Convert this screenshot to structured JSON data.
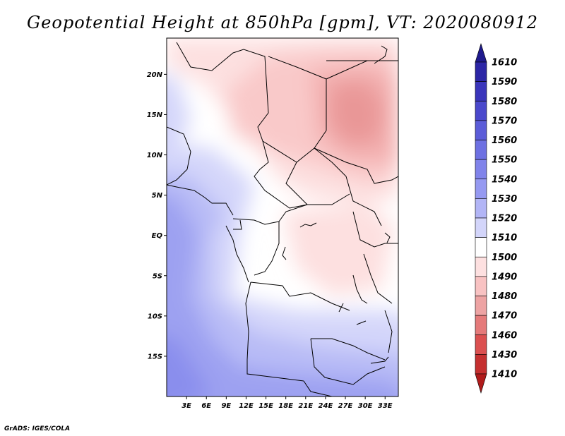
{
  "title": "Geopotential Height at 850hPa [gpm], VT: 2020080912",
  "footer": "GrADS: IGES/COLA",
  "map": {
    "lon_range": [
      0,
      35
    ],
    "lat_range": [
      -20,
      24.5
    ],
    "lat_labels": [
      {
        "value": 20,
        "label": "20N"
      },
      {
        "value": 15,
        "label": "15N"
      },
      {
        "value": 10,
        "label": "10N"
      },
      {
        "value": 5,
        "label": "5N"
      },
      {
        "value": 0,
        "label": "EQ"
      },
      {
        "value": -5,
        "label": "5S"
      },
      {
        "value": -10,
        "label": "10S"
      },
      {
        "value": -15,
        "label": "15S"
      }
    ],
    "lon_labels": [
      {
        "value": 3,
        "label": "3E"
      },
      {
        "value": 6,
        "label": "6E"
      },
      {
        "value": 9,
        "label": "9E"
      },
      {
        "value": 12,
        "label": "12E"
      },
      {
        "value": 15,
        "label": "15E"
      },
      {
        "value": 18,
        "label": "18E"
      },
      {
        "value": 21,
        "label": "21E"
      },
      {
        "value": 24,
        "label": "24E"
      },
      {
        "value": 27,
        "label": "27E"
      },
      {
        "value": 30,
        "label": "30E"
      },
      {
        "value": 33,
        "label": "33E"
      }
    ]
  },
  "colorbar": {
    "labels": [
      "1610",
      "1590",
      "1580",
      "1570",
      "1560",
      "1550",
      "1540",
      "1530",
      "1520",
      "1510",
      "1500",
      "1490",
      "1480",
      "1470",
      "1460",
      "1430",
      "1410"
    ],
    "colors": [
      "#1f1a8c",
      "#2c26a6",
      "#3a35bb",
      "#4a48cc",
      "#5b5cd8",
      "#6d70e2",
      "#8083ea",
      "#9599f1",
      "#b2b5f6",
      "#d3d5fa",
      "#ffffff",
      "#fde0e0",
      "#f8c2c2",
      "#eda3a3",
      "#e57a7a",
      "#db5050",
      "#c53030",
      "#b01b1b"
    ]
  }
}
